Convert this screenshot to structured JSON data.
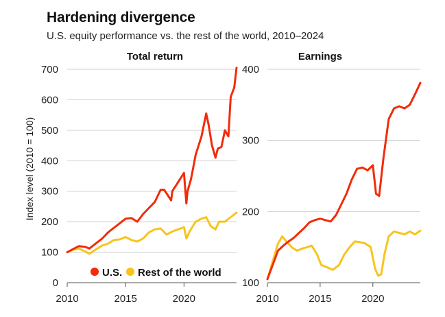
{
  "title": "Hardening divergence",
  "subtitle": "U.S. equity performance vs. the rest of the world, 2010–2024",
  "legend": [
    {
      "label": "U.S.",
      "color": "#f22b0a"
    },
    {
      "label": "Rest of the world",
      "color": "#f7c41e"
    }
  ],
  "chart_data": [
    {
      "type": "line",
      "title": "Total return",
      "ylabel": "Index level (2010 = 100)",
      "xlim": [
        2010,
        2024.5
      ],
      "ylim": [
        0,
        700
      ],
      "x_ticks": [
        "2010",
        "2015",
        "2020"
      ],
      "y_ticks": [
        "0",
        "100",
        "200",
        "300",
        "400",
        "500",
        "600",
        "700"
      ],
      "series": [
        {
          "name": "U.S.",
          "color": "#f22b0a",
          "x": [
            2010,
            2010.5,
            2011,
            2011.5,
            2011.9,
            2012.5,
            2013,
            2013.5,
            2014,
            2014.5,
            2015,
            2015.5,
            2016,
            2016.5,
            2017,
            2017.5,
            2018,
            2018.3,
            2018.9,
            2019,
            2019.5,
            2020.0,
            2020.2,
            2020.3,
            2020.6,
            2021,
            2021.5,
            2021.9,
            2022.1,
            2022.4,
            2022.7,
            2022.9,
            2023.2,
            2023.5,
            2023.8,
            2024,
            2024.3,
            2024.5
          ],
          "y": [
            100,
            110,
            120,
            118,
            112,
            130,
            145,
            165,
            180,
            195,
            210,
            212,
            200,
            225,
            245,
            265,
            305,
            305,
            270,
            300,
            330,
            360,
            260,
            300,
            340,
            420,
            480,
            555,
            520,
            450,
            410,
            440,
            445,
            500,
            480,
            610,
            640,
            705
          ]
        },
        {
          "name": "Rest of the world",
          "color": "#f7c41e",
          "x": [
            2010,
            2010.5,
            2011,
            2011.5,
            2011.9,
            2012.5,
            2013,
            2013.5,
            2014,
            2014.5,
            2015,
            2015.5,
            2016,
            2016.5,
            2017,
            2017.5,
            2018,
            2018.5,
            2019,
            2019.5,
            2020.0,
            2020.2,
            2020.5,
            2021,
            2021.5,
            2021.9,
            2022.3,
            2022.7,
            2023,
            2023.5,
            2024,
            2024.5
          ],
          "y": [
            100,
            108,
            112,
            103,
            95,
            110,
            122,
            128,
            140,
            142,
            150,
            140,
            135,
            145,
            165,
            175,
            178,
            158,
            168,
            175,
            182,
            145,
            170,
            200,
            210,
            215,
            185,
            175,
            200,
            200,
            215,
            230
          ]
        }
      ]
    },
    {
      "type": "line",
      "title": "Earnings",
      "xlim": [
        2010,
        2024.5
      ],
      "ylim": [
        100,
        400
      ],
      "x_ticks": [
        "2010",
        "2015",
        "2020"
      ],
      "y_ticks": [
        "100",
        "200",
        "300",
        "400"
      ],
      "series": [
        {
          "name": "U.S.",
          "color": "#f22b0a",
          "x": [
            2010,
            2010.5,
            2011,
            2011.5,
            2012,
            2012.5,
            2013,
            2013.5,
            2014,
            2014.5,
            2015,
            2015.5,
            2016,
            2016.5,
            2017,
            2017.5,
            2018,
            2018.5,
            2019,
            2019.5,
            2020,
            2020.3,
            2020.6,
            2021,
            2021.5,
            2022,
            2022.5,
            2023,
            2023.5,
            2024,
            2024.5
          ],
          "y": [
            105,
            125,
            145,
            152,
            158,
            163,
            170,
            177,
            185,
            188,
            190,
            188,
            186,
            195,
            210,
            225,
            245,
            260,
            262,
            258,
            265,
            225,
            222,
            275,
            330,
            345,
            348,
            345,
            350,
            365,
            381
          ]
        },
        {
          "name": "Rest of the world",
          "color": "#f7c41e",
          "x": [
            2010,
            2010.5,
            2011,
            2011.4,
            2011.8,
            2012.3,
            2012.8,
            2013.3,
            2013.8,
            2014.2,
            2014.7,
            2015.1,
            2015.6,
            2016.2,
            2016.8,
            2017.3,
            2017.8,
            2018.3,
            2018.8,
            2019.3,
            2019.8,
            2020.2,
            2020.5,
            2020.8,
            2021.1,
            2021.5,
            2022,
            2022.5,
            2023,
            2023.5,
            2024,
            2024.5
          ],
          "y": [
            105,
            130,
            155,
            165,
            158,
            150,
            145,
            148,
            150,
            152,
            140,
            125,
            122,
            118,
            125,
            140,
            150,
            158,
            157,
            155,
            150,
            120,
            110,
            112,
            140,
            165,
            172,
            170,
            168,
            172,
            168,
            173
          ]
        }
      ]
    }
  ]
}
